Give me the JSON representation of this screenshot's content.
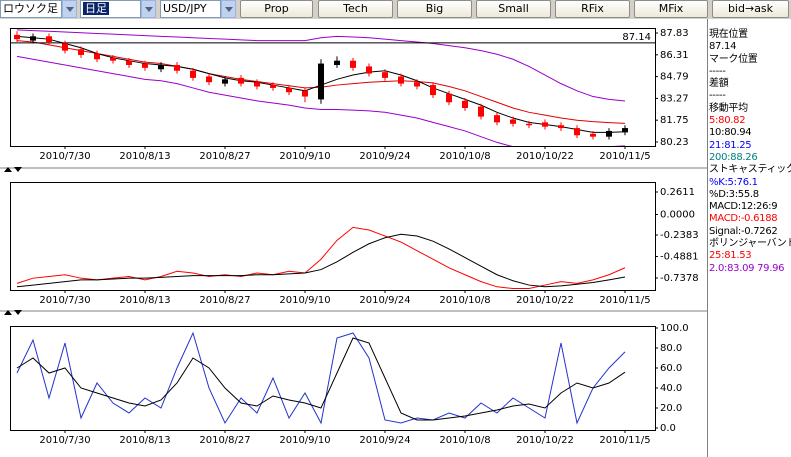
{
  "toolbar": {
    "dropdowns": [
      "ロウソク足",
      "日足",
      "USD/JPY"
    ],
    "buttons": [
      "Prop",
      "Tech",
      "Big",
      "Small",
      "RFix",
      "MFix",
      "bid→ask"
    ]
  },
  "info_panel": [
    {
      "text": "現在位置",
      "color": "#000000"
    },
    {
      "text": "87.14",
      "color": "#000000"
    },
    {
      "text": "マーク位置",
      "color": "#000000"
    },
    {
      "text": "-----",
      "color": "#000000"
    },
    {
      "text": "差額",
      "color": "#000000"
    },
    {
      "text": "-----",
      "color": "#000000"
    },
    {
      "text": "移動平均",
      "color": "#000000"
    },
    {
      "text": "5:80.82",
      "color": "#ff0000"
    },
    {
      "text": "10:80.94",
      "color": "#000000"
    },
    {
      "text": "21:81.25",
      "color": "#0000ff"
    },
    {
      "text": "200:88.26",
      "color": "#008080"
    },
    {
      "text": "ストキャスティックス",
      "color": "#000000"
    },
    {
      "text": "%K:5:76.1",
      "color": "#0000ff"
    },
    {
      "text": "%D:3:55.8",
      "color": "#000000"
    },
    {
      "text": "MACD:12:26:9",
      "color": "#000000"
    },
    {
      "text": "MACD:-0.6188",
      "color": "#ff0000"
    },
    {
      "text": "Signal:-0.7262",
      "color": "#000000"
    },
    {
      "text": "ボリンジャーバンド",
      "color": "#000000"
    },
    {
      "text": "25:81.53",
      "color": "#ff0000"
    },
    {
      "text": "2.0:83.09 79.96",
      "color": "#9900cc"
    }
  ],
  "chart_data": [
    {
      "type": "candlestick",
      "categories": [
        null,
        null,
        null,
        "2010/7/30",
        null,
        null,
        null,
        null,
        "2010/8/13",
        null,
        null,
        null,
        null,
        "2010/8/27",
        null,
        null,
        null,
        null,
        "2010/9/10",
        null,
        null,
        null,
        null,
        "2010/9/24",
        null,
        null,
        null,
        null,
        "2010/10/8",
        null,
        null,
        null,
        null,
        "2010/10/22",
        null,
        null,
        null,
        null,
        "2010/11/5"
      ],
      "open": [
        87.7,
        87.3,
        87.6,
        87.1,
        86.7,
        86.4,
        86.1,
        85.9,
        85.7,
        85.3,
        85.6,
        85.2,
        84.8,
        84.3,
        84.7,
        84.4,
        84.2,
        84.0,
        83.8,
        83.2,
        85.6,
        85.9,
        85.5,
        85.1,
        84.8,
        84.4,
        84.2,
        83.6,
        83.1,
        82.7,
        82.1,
        81.8,
        81.5,
        81.6,
        81.4,
        81.2,
        80.8,
        80.6,
        80.9
      ],
      "high": [
        87.95,
        87.8,
        87.8,
        87.3,
        86.9,
        86.6,
        86.3,
        86.1,
        85.9,
        85.8,
        85.8,
        85.4,
        85.0,
        84.8,
        84.9,
        84.6,
        84.4,
        84.2,
        84.0,
        86.0,
        86.2,
        86.1,
        85.7,
        85.3,
        85.0,
        84.6,
        84.4,
        83.8,
        83.3,
        82.9,
        82.3,
        82.0,
        81.7,
        81.8,
        81.6,
        81.4,
        81.0,
        81.2,
        81.4
      ],
      "low": [
        87.2,
        87.1,
        87.0,
        86.4,
        86.1,
        85.8,
        85.7,
        85.4,
        85.2,
        85.1,
        85.0,
        84.5,
        84.2,
        84.1,
        84.1,
        83.9,
        83.8,
        83.5,
        83.0,
        82.9,
        85.4,
        85.2,
        84.8,
        84.5,
        84.1,
        83.9,
        83.3,
        82.8,
        82.4,
        81.8,
        81.4,
        81.3,
        81.2,
        81.1,
        81.0,
        80.5,
        80.4,
        80.4,
        80.7
      ],
      "close": [
        87.4,
        87.6,
        87.2,
        86.6,
        86.3,
        86.0,
        85.9,
        85.6,
        85.4,
        85.6,
        85.2,
        84.7,
        84.4,
        84.6,
        84.3,
        84.1,
        84.0,
        83.7,
        83.4,
        85.7,
        85.9,
        85.4,
        85.0,
        84.7,
        84.3,
        84.1,
        83.5,
        83.0,
        82.6,
        82.0,
        81.6,
        81.5,
        81.4,
        81.3,
        81.2,
        80.7,
        80.6,
        81.0,
        81.2
      ],
      "up_color": "#000000",
      "down_color": "#ff0000",
      "current_line": 87.14,
      "lines": [
        {
          "color": "#9900cc",
          "values": [
            88.05,
            88.0,
            87.95,
            87.9,
            87.85,
            87.8,
            87.75,
            87.7,
            87.65,
            87.6,
            87.55,
            87.5,
            87.45,
            87.4,
            87.35,
            87.3,
            87.3,
            87.3,
            87.3,
            87.5,
            87.6,
            87.55,
            87.5,
            87.4,
            87.3,
            87.2,
            87.1,
            86.95,
            86.8,
            86.6,
            86.35,
            86.0,
            85.5,
            84.9,
            84.3,
            83.8,
            83.4,
            83.2,
            83.09
          ]
        },
        {
          "color": "#9900cc",
          "values": [
            86.2,
            86.0,
            85.8,
            85.6,
            85.4,
            85.2,
            85.0,
            84.8,
            84.6,
            84.5,
            84.3,
            84.0,
            83.7,
            83.5,
            83.3,
            83.1,
            82.95,
            82.8,
            82.6,
            82.5,
            82.5,
            82.45,
            82.4,
            82.3,
            82.1,
            81.9,
            81.6,
            81.3,
            81.0,
            80.6,
            80.2,
            79.9,
            79.7,
            79.6,
            79.6,
            79.7,
            79.8,
            79.9,
            79.96
          ]
        },
        {
          "color": "#e00000",
          "values": [
            87.3,
            87.2,
            87.0,
            86.8,
            86.6,
            86.4,
            86.2,
            86.0,
            85.8,
            85.7,
            85.5,
            85.3,
            85.0,
            84.8,
            84.6,
            84.45,
            84.3,
            84.15,
            84.0,
            84.05,
            84.2,
            84.3,
            84.4,
            84.45,
            84.5,
            84.45,
            84.35,
            84.1,
            83.8,
            83.4,
            83.0,
            82.6,
            82.3,
            82.1,
            81.9,
            81.75,
            81.65,
            81.58,
            81.53
          ]
        },
        {
          "color": "#000000",
          "values": [
            87.6,
            87.5,
            87.4,
            87.1,
            86.8,
            86.4,
            86.1,
            85.9,
            85.7,
            85.6,
            85.5,
            85.3,
            85.0,
            84.7,
            84.5,
            84.4,
            84.2,
            84.0,
            83.8,
            84.2,
            84.6,
            84.9,
            85.1,
            85.2,
            84.9,
            84.5,
            84.0,
            83.6,
            83.2,
            82.8,
            82.3,
            81.9,
            81.6,
            81.45,
            81.3,
            81.1,
            80.9,
            80.9,
            80.94
          ]
        }
      ],
      "ylim": [
        79.95,
        88.18
      ],
      "yticks": [
        87.83,
        86.31,
        84.79,
        83.27,
        81.75,
        80.23
      ]
    },
    {
      "type": "line",
      "categories": [
        null,
        null,
        null,
        "2010/7/30",
        null,
        null,
        null,
        null,
        "2010/8/13",
        null,
        null,
        null,
        null,
        "2010/8/27",
        null,
        null,
        null,
        null,
        "2010/9/10",
        null,
        null,
        null,
        null,
        "2010/9/24",
        null,
        null,
        null,
        null,
        "2010/10/8",
        null,
        null,
        null,
        null,
        "2010/10/22",
        null,
        null,
        null,
        null,
        "2010/11/5"
      ],
      "series": [
        {
          "color": "#ff0000",
          "values": [
            -0.8,
            -0.74,
            -0.72,
            -0.7,
            -0.74,
            -0.76,
            -0.74,
            -0.72,
            -0.76,
            -0.72,
            -0.66,
            -0.68,
            -0.72,
            -0.7,
            -0.72,
            -0.68,
            -0.7,
            -0.66,
            -0.68,
            -0.52,
            -0.3,
            -0.15,
            -0.18,
            -0.25,
            -0.32,
            -0.42,
            -0.52,
            -0.62,
            -0.7,
            -0.78,
            -0.84,
            -0.86,
            -0.86,
            -0.82,
            -0.78,
            -0.8,
            -0.76,
            -0.7,
            -0.6188
          ]
        },
        {
          "color": "#000000",
          "values": [
            -0.84,
            -0.82,
            -0.8,
            -0.78,
            -0.76,
            -0.76,
            -0.75,
            -0.74,
            -0.74,
            -0.73,
            -0.72,
            -0.71,
            -0.71,
            -0.71,
            -0.71,
            -0.7,
            -0.7,
            -0.69,
            -0.68,
            -0.64,
            -0.55,
            -0.44,
            -0.34,
            -0.27,
            -0.23,
            -0.25,
            -0.31,
            -0.4,
            -0.5,
            -0.6,
            -0.7,
            -0.77,
            -0.82,
            -0.84,
            -0.83,
            -0.81,
            -0.79,
            -0.76,
            -0.7262
          ]
        }
      ],
      "ylim": [
        -0.8773,
        0.3774
      ],
      "yticks": [
        0.2611,
        {
          "value": 0,
          "label": "0.0000"
        },
        -0.2383,
        -0.4881,
        -0.7378
      ]
    },
    {
      "type": "line",
      "categories": [
        null,
        null,
        null,
        "2010/7/30",
        null,
        null,
        null,
        null,
        "2010/8/13",
        null,
        null,
        null,
        null,
        "2010/8/27",
        null,
        null,
        null,
        null,
        "2010/9/10",
        null,
        null,
        null,
        null,
        "2010/9/24",
        null,
        null,
        null,
        null,
        "2010/10/8",
        null,
        null,
        null,
        null,
        "2010/10/22",
        null,
        null,
        null,
        null,
        "2010/11/5"
      ],
      "series": [
        {
          "color": "#2233cc",
          "values": [
            55,
            88,
            30,
            85,
            10,
            45,
            25,
            15,
            30,
            20,
            60,
            95,
            40,
            5,
            30,
            15,
            50,
            10,
            35,
            5,
            90,
            95,
            70,
            8,
            5,
            10,
            8,
            15,
            10,
            25,
            15,
            30,
            20,
            10,
            85,
            5,
            40,
            60,
            76.1
          ]
        },
        {
          "color": "#000000",
          "values": [
            60,
            70,
            55,
            60,
            40,
            35,
            30,
            25,
            22,
            28,
            45,
            70,
            60,
            40,
            25,
            22,
            32,
            28,
            25,
            20,
            55,
            90,
            85,
            50,
            15,
            8,
            8,
            10,
            12,
            15,
            18,
            22,
            24,
            20,
            35,
            45,
            40,
            45,
            55.8
          ]
        }
      ],
      "ylim": [
        -2,
        102
      ],
      "yticks": [
        {
          "value": 100,
          "label": "100.0"
        },
        {
          "value": 80,
          "label": "80.0"
        },
        {
          "value": 60,
          "label": "60.0"
        },
        {
          "value": 40,
          "label": "40.0"
        },
        {
          "value": 20,
          "label": "20.0"
        },
        {
          "value": 0,
          "label": "0.0"
        }
      ]
    }
  ]
}
